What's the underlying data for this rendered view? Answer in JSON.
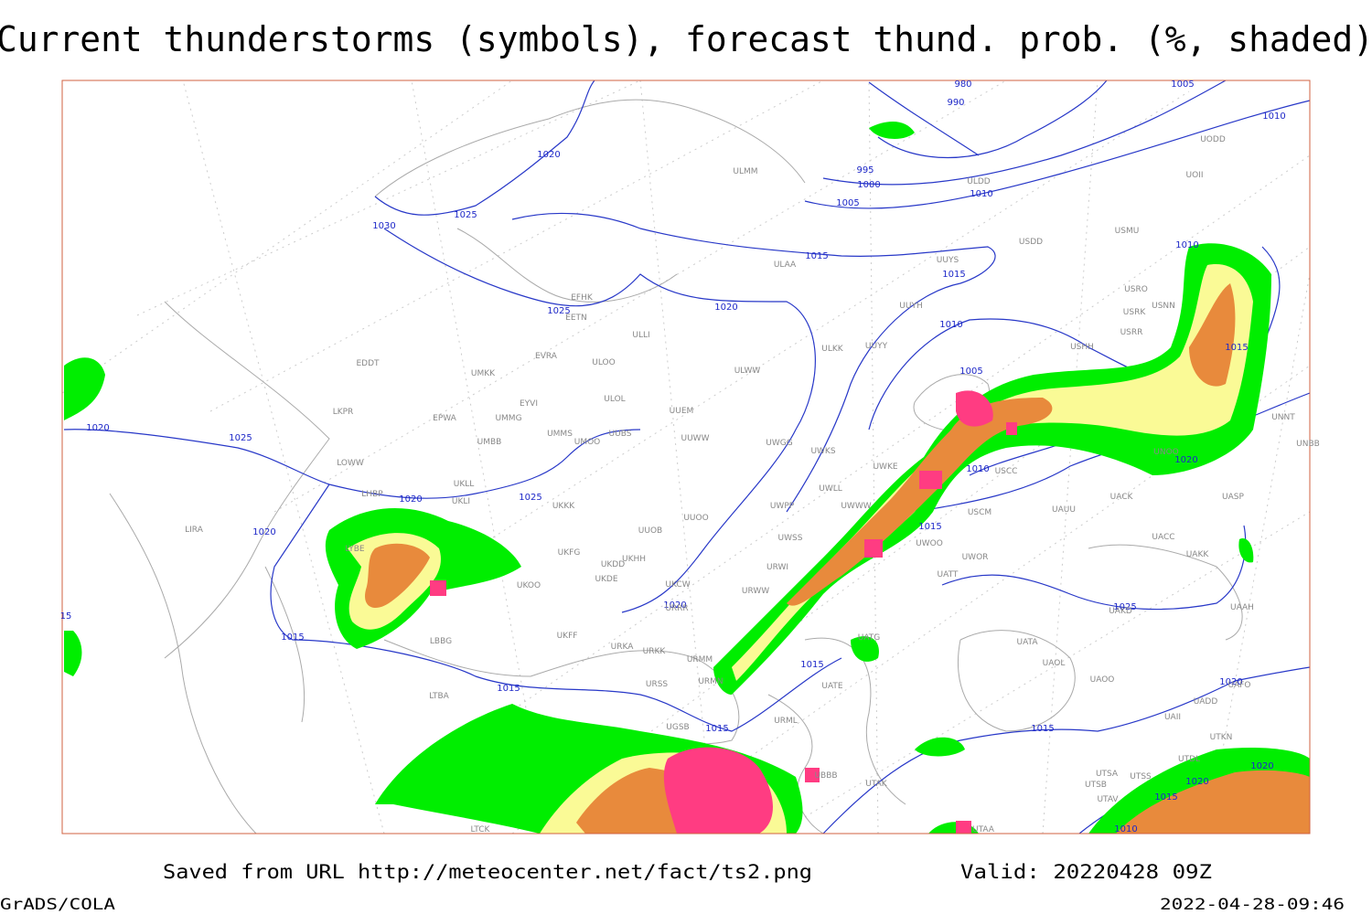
{
  "header": {
    "title": "Current thunderstorms (symbols), forecast thund. prob. (%, shaded)"
  },
  "map": {
    "isobar_labels": [
      980,
      990,
      1005,
      1010,
      995,
      1000,
      1005,
      1010,
      1020,
      1025,
      1030,
      1015,
      1015,
      1020,
      1025,
      1010,
      1010,
      1005,
      1015,
      1020,
      1010,
      1015,
      1020,
      1025,
      1020,
      1025,
      1020,
      1020,
      1015,
      1015,
      1015,
      1015,
      1015,
      1020,
      1025,
      1020,
      1020,
      1015,
      1010,
      15
    ],
    "stations": [
      "EDDT",
      "UMKK",
      "LKPR",
      "EPWA",
      "UMMG",
      "EYVI",
      "UMMS",
      "UMOO",
      "UMBB",
      "UUBS",
      "ULOL",
      "UUEM",
      "UUWW",
      "ULWW",
      "ULKK",
      "UUYY",
      "UUYH",
      "UWGG",
      "UWKS",
      "UWKE",
      "UWLL",
      "UWWW",
      "UWPP",
      "UWSS",
      "URWI",
      "URWW",
      "UKLL",
      "UKLI",
      "LHBP",
      "UKKK",
      "UUOO",
      "UUOB",
      "UKHH",
      "UKDD",
      "UKDE",
      "UKFG",
      "UKOO",
      "UKCW",
      "URRR",
      "LIRA",
      "LYBE",
      "LBBG",
      "LTBA",
      "UKFF",
      "URKA",
      "URKK",
      "URMM",
      "URMN",
      "URSS",
      "URML",
      "UGSB",
      "UBBB",
      "UTAK",
      "UATG",
      "UATE",
      "UATT",
      "UATA",
      "UAOL",
      "UAOO",
      "UADD",
      "UAFO",
      "UAII",
      "UTDL",
      "UTKN",
      "UTSA",
      "UTSB",
      "UTAV",
      "UTSS",
      "UAKK",
      "UACC",
      "UACK",
      "UASP",
      "UAUU",
      "USCM",
      "USCC",
      "UNOO",
      "UNBB",
      "UNNT",
      "UWOO",
      "UWOR",
      "USHH",
      "USRR",
      "USRK",
      "USRO",
      "USNN",
      "USMU",
      "USDD",
      "ULDD",
      "UOII",
      "UODD",
      "ULMM",
      "ULAA",
      "UUYS",
      "EFHK",
      "EETN",
      "EVRA",
      "ULOO",
      "ULLI",
      "LOWW",
      "UAAH",
      "UAKD",
      "UTAA",
      "LTCK"
    ]
  },
  "footer": {
    "source": "Saved from URL http://meteocenter.net/fact/ts2.png",
    "valid": "Valid: 20220428 09Z",
    "software": "GrADS/COLA",
    "timestamp": "2022-04-28-09:46"
  }
}
